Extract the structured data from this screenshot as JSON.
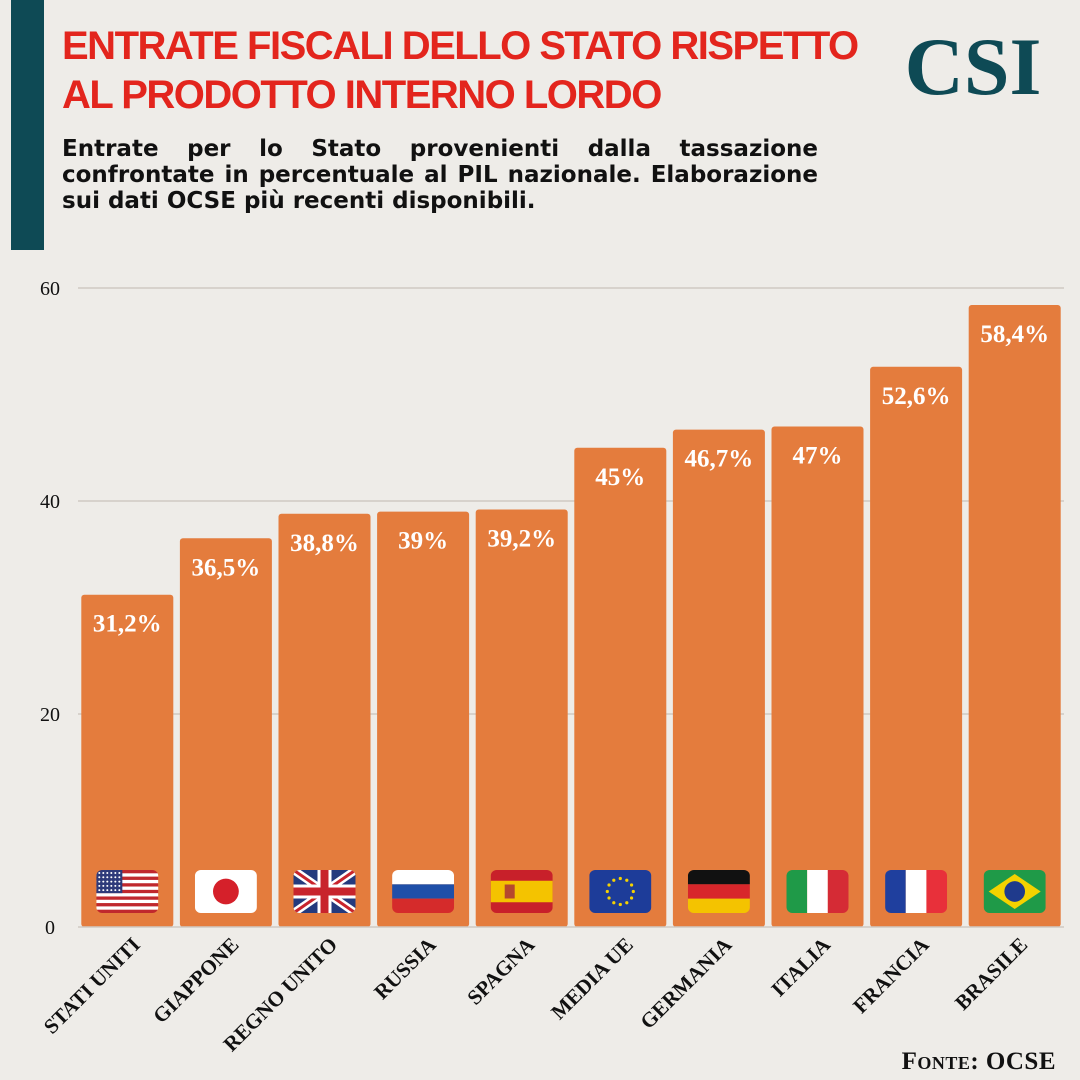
{
  "header": {
    "title": "ENTRATE FISCALI DELLO STATO RISPETTO AL PRODOTTO INTERNO LORDO",
    "logo": "CSI",
    "subtitle": "Entrate per lo Stato provenienti dalla tassazione confrontate in percentuale al PIL nazionale. Elaborazione sui dati OCSE più recenti disponibili."
  },
  "source": "Fonte: OCSE",
  "colors": {
    "bar": "#e47c3d",
    "title": "#e3251d",
    "brand": "#0e4a55",
    "label": "#ffffff",
    "grid": "#cfcac3"
  },
  "chart_data": {
    "type": "bar",
    "title": "ENTRATE FISCALI DELLO STATO RISPETTO AL PRODOTTO INTERNO LORDO",
    "xlabel": "",
    "ylabel": "",
    "ylim": [
      0,
      60
    ],
    "yticks": [
      0,
      20,
      40,
      60
    ],
    "grid": true,
    "categories": [
      "STATI UNITI",
      "GIAPPONE",
      "REGNO UNITO",
      "RUSSIA",
      "SPAGNA",
      "MEDIA UE",
      "GERMANIA",
      "ITALIA",
      "FRANCIA",
      "BRASILE"
    ],
    "values": [
      31.2,
      36.5,
      38.8,
      39,
      39.2,
      45,
      46.7,
      47,
      52.6,
      58.4
    ],
    "data_labels": [
      "31,2%",
      "36,5%",
      "38,8%",
      "39%",
      "39,2%",
      "45%",
      "46,7%",
      "47%",
      "52,6%",
      "58,4%"
    ],
    "flags": [
      "usa-flag-icon",
      "japan-flag-icon",
      "uk-flag-icon",
      "russia-flag-icon",
      "spain-flag-icon",
      "eu-flag-icon",
      "germany-flag-icon",
      "italy-flag-icon",
      "france-flag-icon",
      "brazil-flag-icon"
    ]
  }
}
